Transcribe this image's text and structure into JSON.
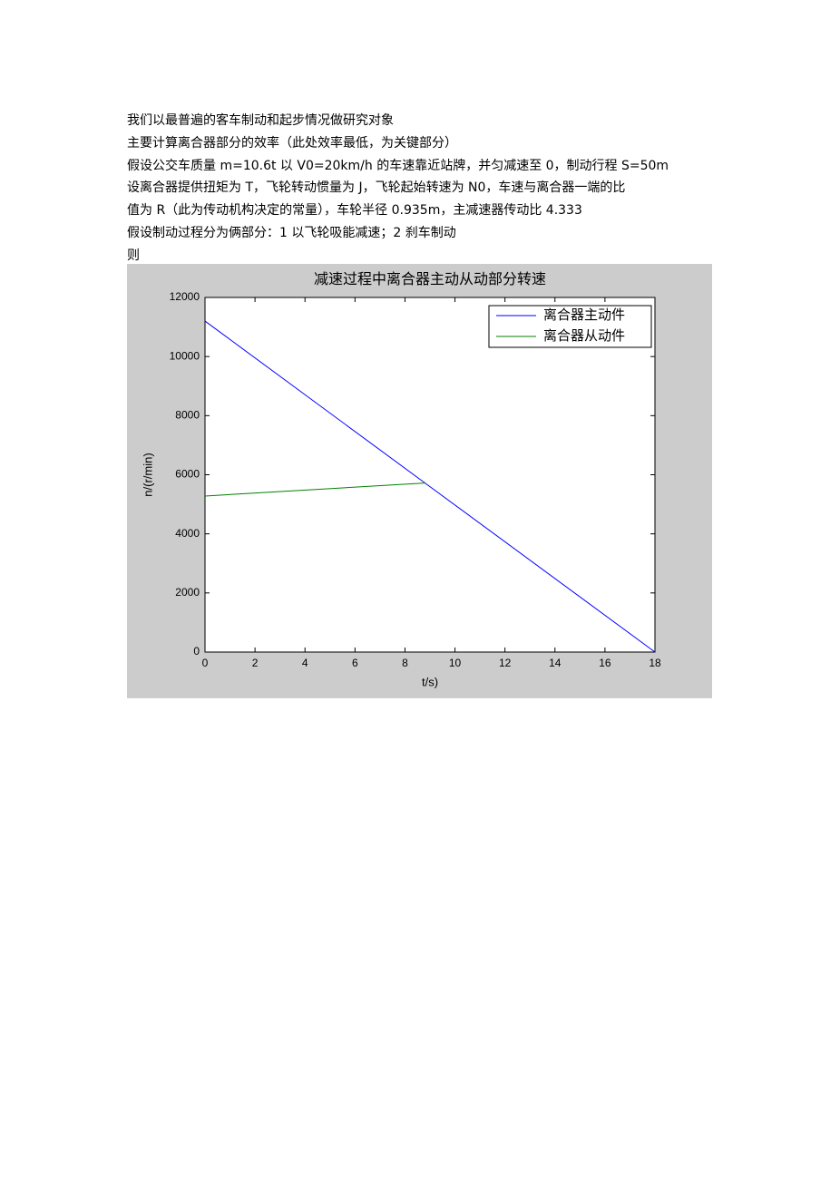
{
  "document": {
    "paragraphs": [
      "我们以最普遍的客车制动和起步情况做研究对象",
      "主要计算离合器部分的效率（此处效率最低，为关键部分）",
      "假设公交车质量 m=10.6t 以 V0=20km/h 的车速靠近站牌，并匀减速至 0，制动行程 S=50m",
      "设离合器提供扭矩为 T，飞轮转动惯量为 J，飞轮起始转速为 N0，车速与离合器一端的比",
      "值为 R（此为传动机构决定的常量），车轮半径 0.935m，主减速器传动比 4.333",
      "假设制动过程分为俩部分：1 以飞轮吸能减速；2 刹车制动",
      "则"
    ]
  },
  "chart_data": {
    "type": "line",
    "title": "减速过程中离合器主动从动部分转速",
    "xlabel": "t/s)",
    "ylabel": "n/(r/min)",
    "x": [
      0,
      8.8,
      18
    ],
    "series": [
      {
        "name": "离合器主动件",
        "color": "#0000ff",
        "values": [
          11200,
          5720,
          0
        ]
      },
      {
        "name": "离合器从动件",
        "color": "#008000",
        "values": [
          5280,
          5720,
          null
        ]
      }
    ],
    "xlim": [
      0,
      18
    ],
    "xticks": [
      0,
      2,
      4,
      6,
      8,
      10,
      12,
      14,
      16,
      18
    ],
    "ylim": [
      0,
      12000
    ],
    "yticks": [
      0,
      2000,
      4000,
      6000,
      8000,
      10000,
      12000
    ],
    "legend": "top-right",
    "grid": false
  }
}
